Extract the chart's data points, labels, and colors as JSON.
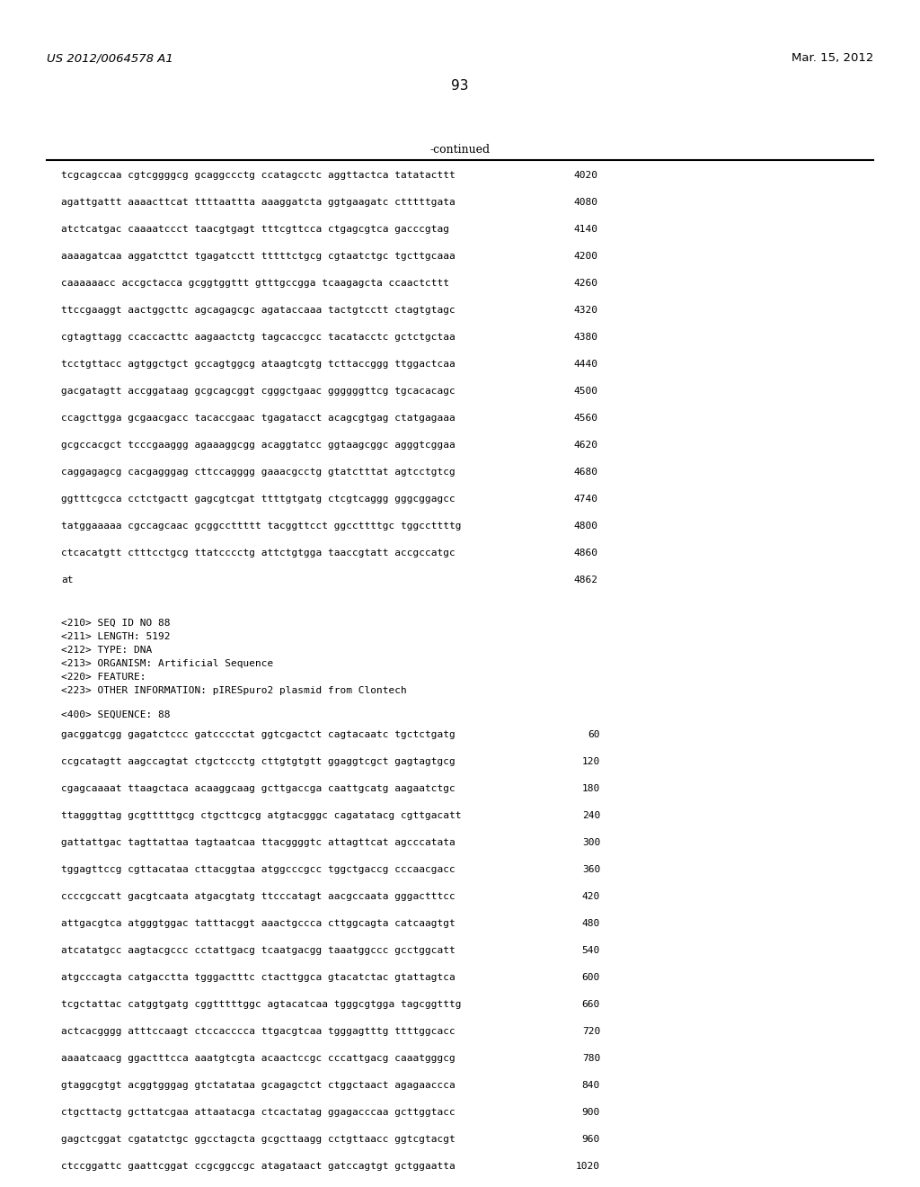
{
  "header_left": "US 2012/0064578 A1",
  "header_right": "Mar. 15, 2012",
  "page_number": "93",
  "continued_label": "-continued",
  "background_color": "#ffffff",
  "text_color": "#000000",
  "sequence_lines_top": [
    {
      "seq": "tcgcagccaa cgtcggggcg gcaggccctg ccatagcctc aggttactca tatatacttt",
      "num": "4020"
    },
    {
      "seq": "agattgattt aaaacttcat ttttaattta aaaggatcta ggtgaagatc ctttttgata",
      "num": "4080"
    },
    {
      "seq": "atctcatgac caaaatccct taacgtgagt tttcgttcca ctgagcgtca gacccgtag",
      "num": "4140"
    },
    {
      "seq": "aaaagatcaa aggatcttct tgagatcctt tttttctgcg cgtaatctgc tgcttgcaaa",
      "num": "4200"
    },
    {
      "seq": "caaaaaacc accgctacca gcggtggttt gtttgccgga tcaagagcta ccaactcttt",
      "num": "4260"
    },
    {
      "seq": "ttccgaaggt aactggcttc agcagagcgc agataccaaa tactgtcctt ctagtgtagc",
      "num": "4320"
    },
    {
      "seq": "cgtagttagg ccaccacttc aagaactctg tagcaccgcc tacatacctc gctctgctaa",
      "num": "4380"
    },
    {
      "seq": "tcctgttacc agtggctgct gccagtggcg ataagtcgtg tcttaccggg ttggactcaa",
      "num": "4440"
    },
    {
      "seq": "gacgatagtt accggataag gcgcagcggt cgggctgaac ggggggttcg tgcacacagc",
      "num": "4500"
    },
    {
      "seq": "ccagcttgga gcgaacgacc tacaccgaac tgagatacct acagcgtgag ctatgagaaa",
      "num": "4560"
    },
    {
      "seq": "gcgccacgct tcccgaaggg agaaaggcgg acaggtatcc ggtaagcggc agggtcggaa",
      "num": "4620"
    },
    {
      "seq": "caggagagcg cacgagggag cttccagggg gaaacgcctg gtatctttat agtcctgtcg",
      "num": "4680"
    },
    {
      "seq": "ggtttcgcca cctctgactt gagcgtcgat ttttgtgatg ctcgtcaggg gggcggagcc",
      "num": "4740"
    },
    {
      "seq": "tatggaaaaa cgccagcaac gcggccttttt tacggttcct ggccttttgc tggccttttg",
      "num": "4800"
    },
    {
      "seq": "ctcacatgtt ctttcctgcg ttatcccctg attctgtgga taaccgtatt accgccatgc",
      "num": "4860"
    },
    {
      "seq": "at",
      "num": "4862"
    }
  ],
  "metadata_lines": [
    "<210> SEQ ID NO 88",
    "<211> LENGTH: 5192",
    "<212> TYPE: DNA",
    "<213> ORGANISM: Artificial Sequence",
    "<220> FEATURE:",
    "<223> OTHER INFORMATION: pIRESpuro2 plasmid from Clontech"
  ],
  "sequence_label": "<400> SEQUENCE: 88",
  "sequence_lines_bottom": [
    {
      "seq": "gacggatcgg gagatctccc gatcccctat ggtcgactct cagtacaatc tgctctgatg",
      "num": "60"
    },
    {
      "seq": "ccgcatagtt aagccagtat ctgctccctg cttgtgtgtt ggaggtcgct gagtagtgcg",
      "num": "120"
    },
    {
      "seq": "cgagcaaaat ttaagctaca acaaggcaag gcttgaccga caattgcatg aagaatctgc",
      "num": "180"
    },
    {
      "seq": "ttagggttag gcgtttttgcg ctgcttcgcg atgtacgggc cagatatacg cgttgacatt",
      "num": "240"
    },
    {
      "seq": "gattattgac tagttattaa tagtaatcaa ttacggggtc attagttcat agcccatata",
      "num": "300"
    },
    {
      "seq": "tggagttccg cgttacataa cttacggtaa atggcccgcc tggctgaccg cccaacgacc",
      "num": "360"
    },
    {
      "seq": "ccccgccatt gacgtcaata atgacgtatg ttcccatagt aacgccaata gggactttcc",
      "num": "420"
    },
    {
      "seq": "attgacgtca atgggtggac tatttacggt aaactgccca cttggcagta catcaagtgt",
      "num": "480"
    },
    {
      "seq": "atcatatgcc aagtacgccc cctattgacg tcaatgacgg taaatggccc gcctggcatt",
      "num": "540"
    },
    {
      "seq": "atgcccagta catgacctta tgggactttc ctacttggca gtacatctac gtattagtca",
      "num": "600"
    },
    {
      "seq": "tcgctattac catggtgatg cggtttttggc agtacatcaa tgggcgtgga tagcggtttg",
      "num": "660"
    },
    {
      "seq": "actcacgggg atttccaagt ctccacccca ttgacgtcaa tgggagtttg ttttggcacc",
      "num": "720"
    },
    {
      "seq": "aaaatcaacg ggactttcca aaatgtcgta acaactccgc cccattgacg caaatgggcg",
      "num": "780"
    },
    {
      "seq": "gtaggcgtgt acggtgggag gtctatataa gcagagctct ctggctaact agagaaccca",
      "num": "840"
    },
    {
      "seq": "ctgcttactg gcttatcgaa attaatacga ctcactatag ggagacccaa gcttggtacc",
      "num": "900"
    },
    {
      "seq": "gagctcggat cgatatctgc ggcctagcta gcgcttaagg cctgttaacc ggtcgtacgt",
      "num": "960"
    },
    {
      "seq": "ctccggattc gaattcggat ccgcggccgc atagataact gatccagtgt gctggaatta",
      "num": "1020"
    }
  ]
}
